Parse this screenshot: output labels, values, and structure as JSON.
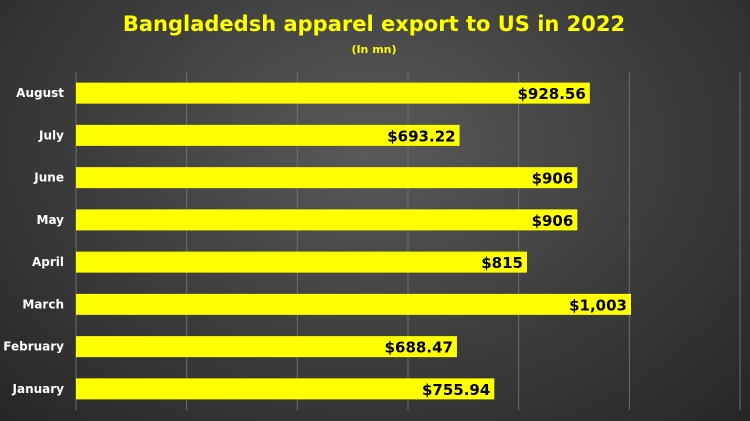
{
  "colors": {
    "bar": "#ffff00",
    "title": "#ffff00",
    "category_text": "#ffffff",
    "value_text": "#000000",
    "background": "#3c3c3c"
  },
  "chart_data": {
    "type": "bar",
    "orientation": "horizontal",
    "title": "Bangladedsh apparel export to US in 2022",
    "subtitle": "(In mn)",
    "categories": [
      "August",
      "July",
      "June",
      "May",
      "April",
      "March",
      "February",
      "January"
    ],
    "values": [
      928.56,
      693.22,
      906,
      906,
      815,
      1003,
      688.47,
      755.94
    ],
    "value_labels": [
      "$928.56",
      "$693.22",
      "$906",
      "$906",
      "$815",
      "$1,003",
      "$688.47",
      "$755.94"
    ],
    "xlim": [
      0,
      1200
    ],
    "grid": true,
    "legend": "none"
  }
}
